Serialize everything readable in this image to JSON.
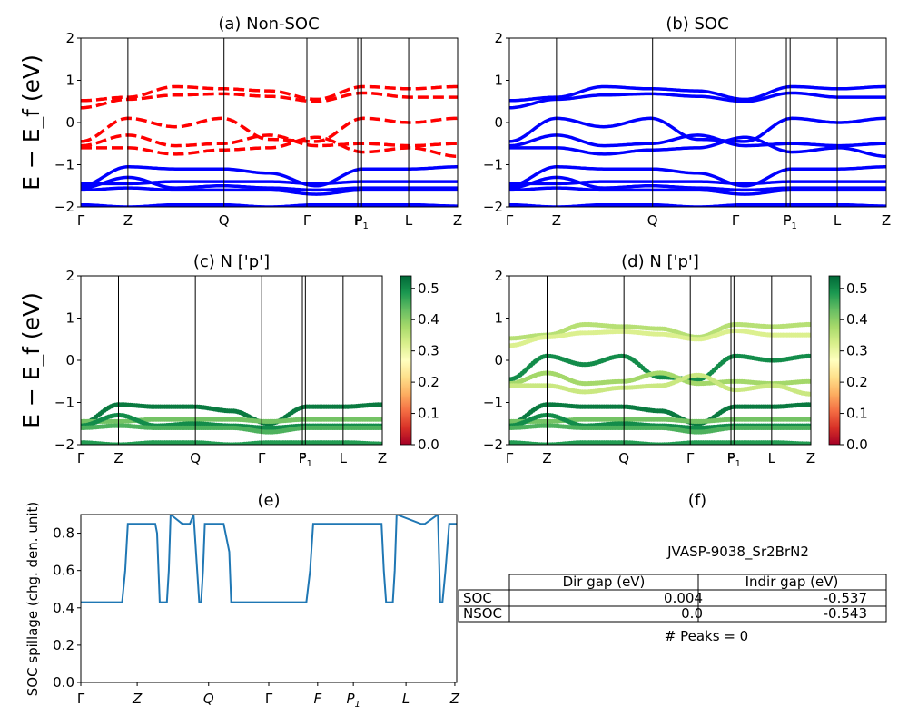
{
  "colors": {
    "nonsoc_bands": "#ff0000",
    "soc_bands": "#0000ff",
    "spillage_line": "#1f77b4",
    "cmap": "RdYlGn"
  },
  "band_panels": {
    "ylabel": "E − E_f (eV)",
    "ylim": [
      -2,
      2
    ],
    "yticks": [
      "2",
      "1",
      "0",
      "−1",
      "−2"
    ],
    "kpoint_labels": [
      "Γ",
      "Z",
      "Q",
      "Γ",
      "F",
      "P1",
      "L",
      "Z"
    ],
    "kpoint_positions": [
      0,
      0.125,
      0.38,
      0.6,
      0.735,
      0.745,
      0.87,
      1.0
    ]
  },
  "panel_a": {
    "title": "(a) Non-SOC"
  },
  "panel_b": {
    "title": "(b) SOC"
  },
  "panel_c": {
    "title": "(c)  N ['p']"
  },
  "panel_d": {
    "title": "(d) N ['p']"
  },
  "colorbar": {
    "ticks": [
      "0.5",
      "0.4",
      "0.3",
      "0.2",
      "0.1",
      "0.0"
    ],
    "vmin": 0.0,
    "vmax": 0.54
  },
  "panel_e": {
    "title": "(e)",
    "ylabel": "SOC spillage (chg. den. unit)"
  },
  "panel_f": {
    "title": "(f)",
    "jid": "JVASP-9038_Sr2BrN2",
    "col_headers": [
      "Dir gap (eV)",
      "Indir gap (eV)"
    ],
    "rows": [
      {
        "label": "SOC",
        "dir": "0.004",
        "indir": "-0.537"
      },
      {
        "label": "NSOC",
        "dir": "0.0",
        "indir": "-0.543"
      }
    ],
    "peaks": "# Peaks = 0"
  },
  "chart_data": [
    {
      "type": "line",
      "title": "(a) Non-SOC",
      "ylabel": "E − E_f (eV)",
      "ylim": [
        -2,
        2
      ],
      "x_tick_labels": [
        "Γ",
        "Z",
        "Q",
        "Γ",
        "F",
        "P1",
        "L",
        "Z"
      ],
      "series": [
        {
          "name": "",
          "style": "dashed-red",
          "values": [
            0.52,
            0.6,
            0.85,
            0.8,
            0.75,
            0.55,
            0.85,
            0.8,
            0.85
          ]
        },
        {
          "name": "",
          "style": "dashed-red",
          "values": [
            0.35,
            0.55,
            0.65,
            0.68,
            0.62,
            0.5,
            0.7,
            0.6,
            0.6
          ]
        },
        {
          "name": "",
          "style": "dashed-red",
          "values": [
            -0.45,
            0.1,
            -0.1,
            0.1,
            -0.4,
            -0.45,
            0.1,
            0.0,
            0.1
          ]
        },
        {
          "name": "",
          "style": "dashed-red",
          "values": [
            -0.55,
            -0.3,
            -0.55,
            -0.5,
            -0.3,
            -0.55,
            -0.5,
            -0.55,
            -0.5
          ]
        },
        {
          "name": "",
          "style": "dashed-red",
          "values": [
            -0.6,
            -0.6,
            -0.75,
            -0.65,
            -0.6,
            -0.35,
            -0.7,
            -0.6,
            -0.8
          ]
        },
        {
          "name": "",
          "style": "solid-blue",
          "values": [
            -1.5,
            -1.05,
            -1.1,
            -1.1,
            -1.2,
            -1.5,
            -1.1,
            -1.1,
            -1.05
          ]
        },
        {
          "name": "",
          "style": "solid-blue",
          "values": [
            -1.45,
            -1.45,
            -1.4,
            -1.4,
            -1.4,
            -1.45,
            -1.4,
            -1.4,
            -1.4
          ]
        },
        {
          "name": "",
          "style": "solid-blue",
          "values": [
            -1.55,
            -1.3,
            -1.55,
            -1.5,
            -1.55,
            -1.6,
            -1.55,
            -1.55,
            -1.55
          ]
        },
        {
          "name": "",
          "style": "solid-blue",
          "values": [
            -1.6,
            -1.55,
            -1.6,
            -1.6,
            -1.6,
            -1.7,
            -1.6,
            -1.6,
            -1.6
          ]
        },
        {
          "name": "",
          "style": "solid-blue",
          "values": [
            -1.95,
            -2.0,
            -1.95,
            -1.95,
            -2.0,
            -1.95,
            -1.95,
            -1.95,
            -1.98
          ]
        }
      ]
    },
    {
      "type": "line",
      "title": "(b) SOC",
      "ylim": [
        -2,
        2
      ],
      "x_tick_labels": [
        "Γ",
        "Z",
        "Q",
        "Γ",
        "F",
        "P1",
        "L",
        "Z"
      ],
      "series": [
        {
          "name": "",
          "values": [
            0.52,
            0.6,
            0.85,
            0.8,
            0.75,
            0.55,
            0.85,
            0.8,
            0.85
          ]
        },
        {
          "name": "",
          "values": [
            0.35,
            0.55,
            0.65,
            0.68,
            0.62,
            0.5,
            0.7,
            0.6,
            0.6
          ]
        },
        {
          "name": "",
          "values": [
            -0.45,
            0.1,
            -0.1,
            0.1,
            -0.4,
            -0.45,
            0.1,
            0.0,
            0.1
          ]
        },
        {
          "name": "",
          "values": [
            -0.55,
            -0.3,
            -0.55,
            -0.5,
            -0.3,
            -0.55,
            -0.5,
            -0.55,
            -0.5
          ]
        },
        {
          "name": "",
          "values": [
            -0.6,
            -0.6,
            -0.75,
            -0.65,
            -0.6,
            -0.35,
            -0.7,
            -0.6,
            -0.8
          ]
        },
        {
          "name": "",
          "values": [
            -1.5,
            -1.05,
            -1.1,
            -1.1,
            -1.2,
            -1.5,
            -1.1,
            -1.1,
            -1.05
          ]
        },
        {
          "name": "",
          "values": [
            -1.45,
            -1.45,
            -1.4,
            -1.4,
            -1.4,
            -1.45,
            -1.4,
            -1.4,
            -1.4
          ]
        },
        {
          "name": "",
          "values": [
            -1.55,
            -1.3,
            -1.55,
            -1.5,
            -1.55,
            -1.6,
            -1.55,
            -1.55,
            -1.55
          ]
        },
        {
          "name": "",
          "values": [
            -1.6,
            -1.55,
            -1.6,
            -1.6,
            -1.6,
            -1.7,
            -1.6,
            -1.6,
            -1.6
          ]
        },
        {
          "name": "",
          "values": [
            -1.95,
            -2.0,
            -1.95,
            -1.95,
            -2.0,
            -1.95,
            -1.95,
            -1.95,
            -1.98
          ]
        }
      ]
    },
    {
      "type": "scatter",
      "title": "(c)  N ['p']",
      "ylim": [
        -2,
        2
      ],
      "colorbar_range": [
        0.0,
        0.54
      ],
      "x_tick_labels": [
        "Γ",
        "Z",
        "Q",
        "Γ",
        "F",
        "P1",
        "L",
        "Z"
      ],
      "series": [
        {
          "name": "",
          "weight": 0.52,
          "values": [
            -1.5,
            -1.05,
            -1.1,
            -1.1,
            -1.2,
            -1.5,
            -1.1,
            -1.1,
            -1.05
          ]
        },
        {
          "name": "",
          "weight": 0.42,
          "values": [
            -1.45,
            -1.45,
            -1.4,
            -1.4,
            -1.4,
            -1.45,
            -1.4,
            -1.4,
            -1.4
          ]
        },
        {
          "name": "",
          "weight": 0.5,
          "values": [
            -1.55,
            -1.3,
            -1.55,
            -1.5,
            -1.55,
            -1.6,
            -1.55,
            -1.55,
            -1.55
          ]
        },
        {
          "name": "",
          "weight": 0.45,
          "values": [
            -1.6,
            -1.55,
            -1.6,
            -1.6,
            -1.6,
            -1.7,
            -1.6,
            -1.6,
            -1.6
          ]
        },
        {
          "name": "",
          "weight": 0.48,
          "values": [
            -1.95,
            -2.0,
            -1.95,
            -1.95,
            -2.0,
            -1.95,
            -1.95,
            -1.95,
            -1.98
          ]
        }
      ]
    },
    {
      "type": "scatter",
      "title": "(d) N ['p']",
      "ylim": [
        -2,
        2
      ],
      "colorbar_range": [
        0.0,
        0.54
      ],
      "x_tick_labels": [
        "Γ",
        "Z",
        "Q",
        "Γ",
        "F",
        "P1",
        "L",
        "Z"
      ],
      "series": [
        {
          "name": "",
          "weight": 0.36,
          "values": [
            0.52,
            0.6,
            0.85,
            0.8,
            0.75,
            0.55,
            0.85,
            0.8,
            0.85
          ]
        },
        {
          "name": "",
          "weight": 0.32,
          "values": [
            0.35,
            0.55,
            0.65,
            0.68,
            0.62,
            0.5,
            0.7,
            0.6,
            0.6
          ]
        },
        {
          "name": "",
          "weight": 0.5,
          "values": [
            -0.45,
            0.1,
            -0.1,
            0.1,
            -0.4,
            -0.45,
            0.1,
            0.0,
            0.1
          ]
        },
        {
          "name": "",
          "weight": 0.38,
          "values": [
            -0.55,
            -0.3,
            -0.55,
            -0.5,
            -0.3,
            -0.55,
            -0.5,
            -0.55,
            -0.5
          ]
        },
        {
          "name": "",
          "weight": 0.34,
          "values": [
            -0.6,
            -0.6,
            -0.75,
            -0.65,
            -0.6,
            -0.35,
            -0.7,
            -0.6,
            -0.8
          ]
        },
        {
          "name": "",
          "weight": 0.52,
          "values": [
            -1.5,
            -1.05,
            -1.1,
            -1.1,
            -1.2,
            -1.5,
            -1.1,
            -1.1,
            -1.05
          ]
        },
        {
          "name": "",
          "weight": 0.42,
          "values": [
            -1.45,
            -1.45,
            -1.4,
            -1.4,
            -1.4,
            -1.45,
            -1.4,
            -1.4,
            -1.4
          ]
        },
        {
          "name": "",
          "weight": 0.5,
          "values": [
            -1.55,
            -1.3,
            -1.55,
            -1.5,
            -1.55,
            -1.6,
            -1.55,
            -1.55,
            -1.55
          ]
        },
        {
          "name": "",
          "weight": 0.45,
          "values": [
            -1.6,
            -1.55,
            -1.6,
            -1.6,
            -1.6,
            -1.7,
            -1.6,
            -1.6,
            -1.6
          ]
        },
        {
          "name": "",
          "weight": 0.48,
          "values": [
            -1.95,
            -2.0,
            -1.95,
            -1.95,
            -2.0,
            -1.95,
            -1.95,
            -1.95,
            -1.98
          ]
        }
      ]
    },
    {
      "type": "line",
      "title": "(e)",
      "ylabel": "SOC spillage (chg. den. unit)",
      "ylim": [
        0.0,
        0.9
      ],
      "yticks": [
        0.0,
        0.2,
        0.4,
        0.6,
        0.8
      ],
      "x_tick_labels": [
        "Γ",
        "Z",
        "Q",
        "Γ",
        "F",
        "P1",
        "L",
        "Z"
      ],
      "x": [
        0.0,
        0.11,
        0.118,
        0.125,
        0.13,
        0.198,
        0.203,
        0.21,
        0.229,
        0.234,
        0.239,
        0.27,
        0.276,
        0.282,
        0.29,
        0.3,
        0.315,
        0.32,
        0.325,
        0.33,
        0.38,
        0.395,
        0.4,
        0.5,
        0.6,
        0.61,
        0.618,
        0.625,
        0.8,
        0.806,
        0.812,
        0.83,
        0.835,
        0.84,
        0.905,
        0.91,
        0.915,
        0.95,
        0.956,
        0.962,
        0.97,
        0.98,
        0.985,
        1.0
      ],
      "values": [
        0.43,
        0.43,
        0.6,
        0.85,
        0.85,
        0.85,
        0.8,
        0.43,
        0.43,
        0.6,
        0.9,
        0.85,
        0.85,
        0.85,
        0.85,
        0.9,
        0.43,
        0.43,
        0.6,
        0.85,
        0.85,
        0.7,
        0.43,
        0.43,
        0.43,
        0.6,
        0.85,
        0.85,
        0.85,
        0.6,
        0.43,
        0.43,
        0.6,
        0.9,
        0.85,
        0.85,
        0.85,
        0.9,
        0.43,
        0.43,
        0.6,
        0.85,
        0.85,
        0.85
      ]
    }
  ]
}
